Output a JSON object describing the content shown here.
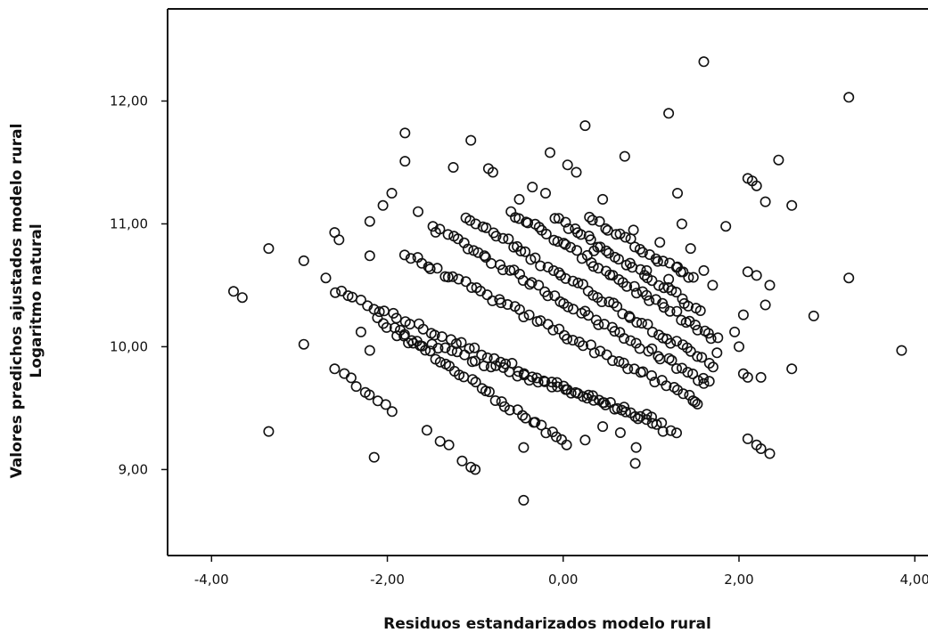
{
  "chart_data": {
    "type": "scatter",
    "title": "",
    "xlabel": "Residuos estandarizados  modelo rural",
    "ylabel_lines": [
      "Valores predichos ajustados modelo rural",
      "Logaritmo natural"
    ],
    "xlim": [
      -4.5,
      4.15
    ],
    "ylim": [
      8.3,
      12.75
    ],
    "x_ticks": [
      -4,
      -2,
      0,
      2,
      4
    ],
    "x_tick_labels": [
      "-4,00",
      "-2,00",
      "0,00",
      "2,00",
      "4,00"
    ],
    "y_ticks": [
      9,
      10,
      11,
      12
    ],
    "y_tick_labels": [
      "9,00",
      "10,00",
      "11,00",
      "12,00"
    ],
    "grid": false,
    "marker": "open-circle",
    "series": [
      {
        "points": [
          [
            -3.75,
            10.45
          ],
          [
            -3.65,
            10.4
          ],
          [
            -3.35,
            10.8
          ],
          [
            -3.35,
            9.31
          ],
          [
            -2.95,
            10.7
          ],
          [
            -2.95,
            10.02
          ],
          [
            -2.7,
            10.56
          ],
          [
            -2.6,
            10.93
          ],
          [
            -2.55,
            10.87
          ],
          [
            -2.6,
            9.82
          ],
          [
            -2.2,
            11.02
          ],
          [
            -2.2,
            10.74
          ],
          [
            -2.15,
            9.1
          ],
          [
            -2.3,
            10.12
          ],
          [
            -2.2,
            9.97
          ],
          [
            -2.05,
            11.15
          ],
          [
            -1.95,
            11.25
          ],
          [
            -1.8,
            11.74
          ],
          [
            -1.8,
            11.51
          ],
          [
            -1.65,
            11.1
          ],
          [
            -1.55,
            9.32
          ],
          [
            -1.4,
            9.23
          ],
          [
            -1.3,
            9.2
          ],
          [
            -1.15,
            9.07
          ],
          [
            -1.05,
            9.02
          ],
          [
            -1.0,
            9.0
          ],
          [
            -1.25,
            11.46
          ],
          [
            -1.05,
            11.68
          ],
          [
            -0.85,
            11.45
          ],
          [
            -0.8,
            11.42
          ],
          [
            -0.45,
            8.75
          ],
          [
            -0.45,
            9.18
          ],
          [
            -0.5,
            11.2
          ],
          [
            -0.35,
            11.3
          ],
          [
            -0.2,
            11.25
          ],
          [
            -0.15,
            11.58
          ],
          [
            0.05,
            11.48
          ],
          [
            0.15,
            11.42
          ],
          [
            0.25,
            11.8
          ],
          [
            0.45,
            11.2
          ],
          [
            0.7,
            11.55
          ],
          [
            0.25,
            9.24
          ],
          [
            0.45,
            9.35
          ],
          [
            0.65,
            9.3
          ],
          [
            0.83,
            9.18
          ],
          [
            0.82,
            9.05
          ],
          [
            1.2,
            11.9
          ],
          [
            1.6,
            12.32
          ],
          [
            1.3,
            11.25
          ],
          [
            1.35,
            11.0
          ],
          [
            1.85,
            10.98
          ],
          [
            1.95,
            10.12
          ],
          [
            2.0,
            10.0
          ],
          [
            2.05,
            10.26
          ],
          [
            2.1,
            10.61
          ],
          [
            2.2,
            10.58
          ],
          [
            2.1,
            11.37
          ],
          [
            2.15,
            11.35
          ],
          [
            2.2,
            11.31
          ],
          [
            2.3,
            11.18
          ],
          [
            2.45,
            11.52
          ],
          [
            2.6,
            11.15
          ],
          [
            2.3,
            10.34
          ],
          [
            2.35,
            10.5
          ],
          [
            2.25,
            9.75
          ],
          [
            2.05,
            9.78
          ],
          [
            2.1,
            9.75
          ],
          [
            2.1,
            9.25
          ],
          [
            2.2,
            9.2
          ],
          [
            2.25,
            9.17
          ],
          [
            2.35,
            9.13
          ],
          [
            2.6,
            9.82
          ],
          [
            2.85,
            10.25
          ],
          [
            3.25,
            12.03
          ],
          [
            3.25,
            10.56
          ],
          [
            3.85,
            9.97
          ],
          [
            0.35,
            10.78
          ],
          [
            0.8,
            10.95
          ],
          [
            1.1,
            10.85
          ],
          [
            0.95,
            10.62
          ],
          [
            1.45,
            10.8
          ],
          [
            1.3,
            10.65
          ],
          [
            1.2,
            10.55
          ],
          [
            1.6,
            10.62
          ],
          [
            1.7,
            10.5
          ],
          [
            1.75,
            9.95
          ],
          [
            1.6,
            9.7
          ],
          [
            1.5,
            9.55
          ]
        ]
      }
    ],
    "bands": [
      {
        "x0": -2.6,
        "y0": 10.45,
        "x1": 1.3,
        "y1": 9.28,
        "n": 55
      },
      {
        "x0": -2.1,
        "y0": 10.22,
        "x1": 0.05,
        "y1": 9.2,
        "n": 38
      },
      {
        "x0": -2.5,
        "y0": 9.78,
        "x1": -1.95,
        "y1": 9.48,
        "n": 8
      },
      {
        "x0": -1.8,
        "y0": 10.75,
        "x1": 1.55,
        "y1": 9.55,
        "n": 55
      },
      {
        "x0": -1.5,
        "y0": 10.98,
        "x1": 1.65,
        "y1": 9.7,
        "n": 55
      },
      {
        "x0": -1.1,
        "y0": 11.05,
        "x1": 1.7,
        "y1": 9.85,
        "n": 50
      },
      {
        "x0": -0.6,
        "y0": 11.1,
        "x1": 1.75,
        "y1": 10.05,
        "n": 45
      },
      {
        "x0": -0.1,
        "y0": 11.05,
        "x1": 1.55,
        "y1": 10.3,
        "n": 32
      },
      {
        "x0": -1.9,
        "y0": 10.1,
        "x1": 1.1,
        "y1": 9.4,
        "n": 40
      },
      {
        "x0": 0.3,
        "y0": 11.05,
        "x1": 1.5,
        "y1": 10.55,
        "n": 22
      }
    ]
  }
}
